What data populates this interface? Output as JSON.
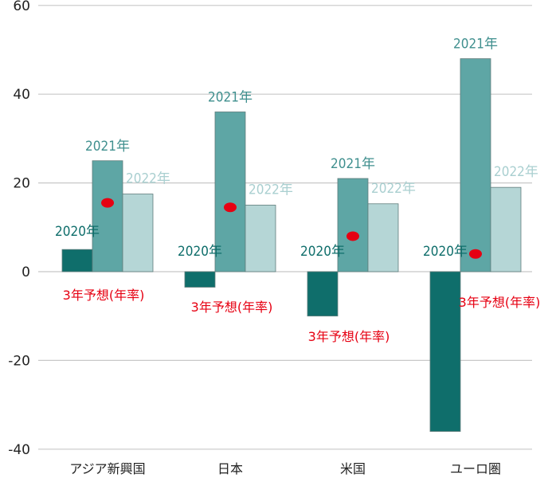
{
  "chart_data": {
    "type": "bar",
    "categories": [
      "アジア新興国",
      "日本",
      "米国",
      "ユーロ圏"
    ],
    "series": [
      {
        "name": "2020年",
        "values": [
          5,
          -3.5,
          -10,
          -36
        ],
        "color": "#0f6e6b"
      },
      {
        "name": "2021年",
        "values": [
          25,
          36,
          21,
          48
        ],
        "color": "#5ea6a5"
      },
      {
        "name": "2022年",
        "values": [
          17.5,
          15,
          15.3,
          19
        ],
        "color": "#b5d6d6"
      }
    ],
    "forecast": {
      "label": "3年予想(年率)",
      "values": [
        15.5,
        14.5,
        8,
        4
      ],
      "color": "#e60012"
    },
    "yticks": [
      60,
      40,
      20,
      0,
      -20,
      -40
    ],
    "ylim": [
      -40,
      60
    ],
    "grid": true,
    "title": "",
    "xlabel": "",
    "ylabel": ""
  }
}
